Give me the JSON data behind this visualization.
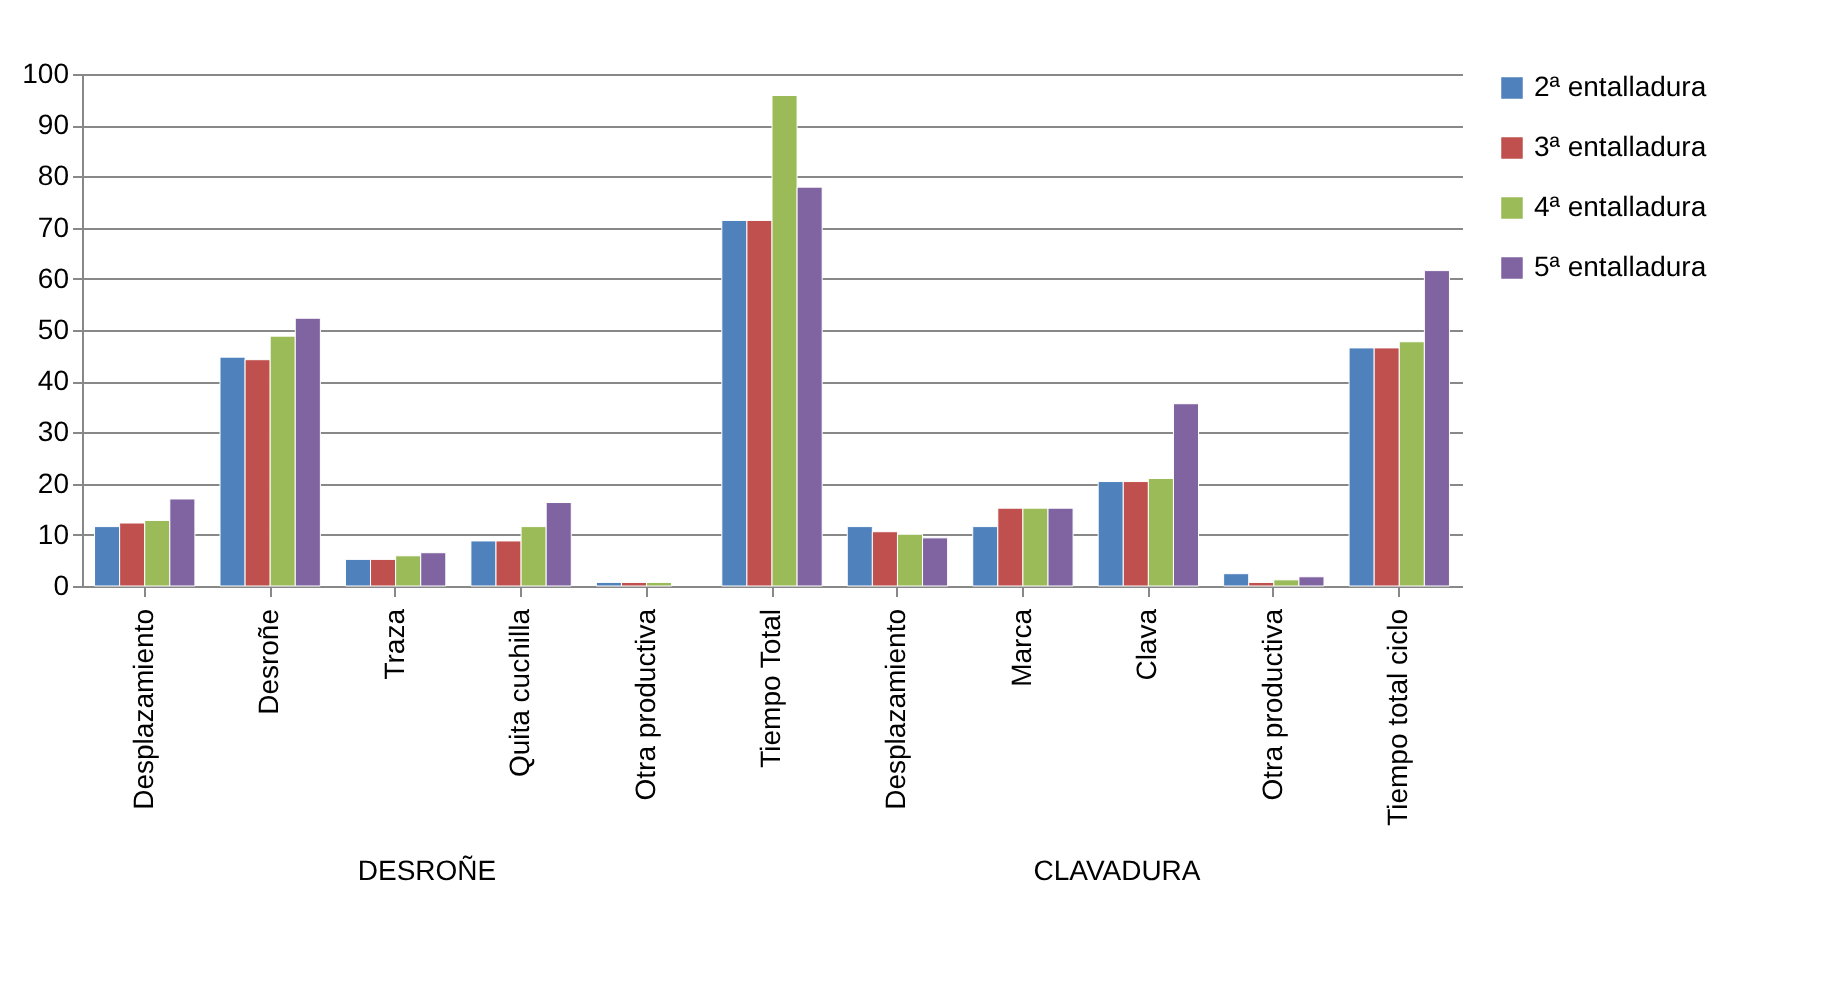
{
  "chart_data": {
    "type": "bar",
    "categories": [
      "Desplazamiento",
      "Desroñe",
      "Traza",
      "Quita cuchilla",
      "Otra productiva",
      "Tiempo Total",
      "Desplazamiento",
      "Marca",
      "Clava",
      "Otra productiva",
      "Tiempo total ciclo"
    ],
    "series": [
      {
        "name": "2ª entalladura",
        "color": "#4f81bd",
        "values": [
          11.6,
          44.7,
          5.2,
          8.8,
          0.7,
          71.4,
          11.6,
          11.6,
          20.4,
          2.4,
          46.5
        ]
      },
      {
        "name": "3ª entalladura",
        "color": "#c0504d",
        "values": [
          12.3,
          44.2,
          5.2,
          8.8,
          0.7,
          71.4,
          10.6,
          15.2,
          20.4,
          0.7,
          46.5
        ]
      },
      {
        "name": "4ª entalladura",
        "color": "#9bbb59",
        "values": [
          12.8,
          48.8,
          5.9,
          11.6,
          0.7,
          95.8,
          10.1,
          15.2,
          21.0,
          1.2,
          47.7
        ]
      },
      {
        "name": "5ª entalladura",
        "color": "#8064a2",
        "values": [
          17.0,
          52.3,
          6.5,
          16.3,
          null,
          77.9,
          9.4,
          15.2,
          35.6,
          1.8,
          61.6
        ]
      }
    ],
    "ylim": [
      0,
      100
    ],
    "yticks": [
      0,
      10,
      20,
      30,
      40,
      50,
      60,
      70,
      80,
      90,
      100
    ],
    "grid": "y",
    "legend": "right",
    "annotations": [
      "DESROÑE",
      "CLAVADURA"
    ]
  }
}
